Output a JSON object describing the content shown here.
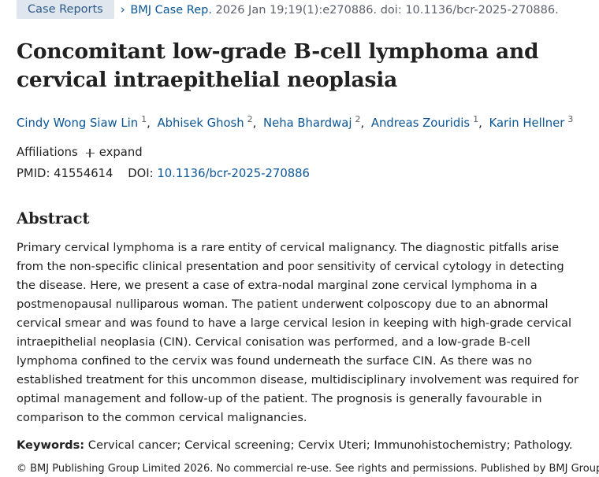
{
  "header": {
    "pub_type": "Case Reports",
    "chevron": "›",
    "journal": "BMJ Case Rep.",
    "citation": "2026 Jan 19;19(1):e270886. doi: 10.1136/bcr-2025-270886."
  },
  "title": "Concomitant low-grade B-cell lymphoma and cervical intraepithelial neoplasia",
  "authors": [
    {
      "name": "Cindy Wong Siaw Lin",
      "affil": "1"
    },
    {
      "name": "Abhisek Ghosh",
      "affil": "2"
    },
    {
      "name": "Neha Bhardwaj",
      "affil": "2"
    },
    {
      "name": "Andreas Zouridis",
      "affil": "1"
    },
    {
      "name": "Karin Hellner",
      "affil": "3"
    }
  ],
  "separator": ",",
  "affiliations": {
    "label": "Affiliations",
    "expand_label": "expand"
  },
  "ids": {
    "pmid_label": "PMID:",
    "pmid": "41554614",
    "doi_label": "DOI:",
    "doi": "10.1136/bcr-2025-270886"
  },
  "abstract": {
    "heading": "Abstract",
    "text": "Primary cervical lymphoma is a rare entity of cervical malignancy. The diagnostic pitfalls arise from the non-specific clinical presentation and poor sensitivity of cervical cytology in detecting the disease. Here, we present a case of extra-nodal marginal zone cervical lymphoma in a postmenopausal nulliparous woman. The patient underwent colposcopy due to an abnormal cervical smear and was found to have a large cervical lesion in keeping with high-grade cervical intraepithelial neoplasia (CIN). Cervical conisation was performed, and a low-grade B-cell lymphoma confined to the cervix was found underneath the surface CIN. As there was no established treatment for this uncommon disease, multidisciplinary involvement was required for optimal management and follow-up of the patient. The prognosis is generally favourable in comparison to the common cervical malignancies."
  },
  "keywords": {
    "label": "Keywords:",
    "text": "Cervical cancer; Cervical screening; Cervix Uteri; Immunohistochemistry; Pathology."
  },
  "copyright": "© BMJ Publishing Group Limited 2026. No commercial re-use. See rights and permissions. Published by BMJ Group."
}
